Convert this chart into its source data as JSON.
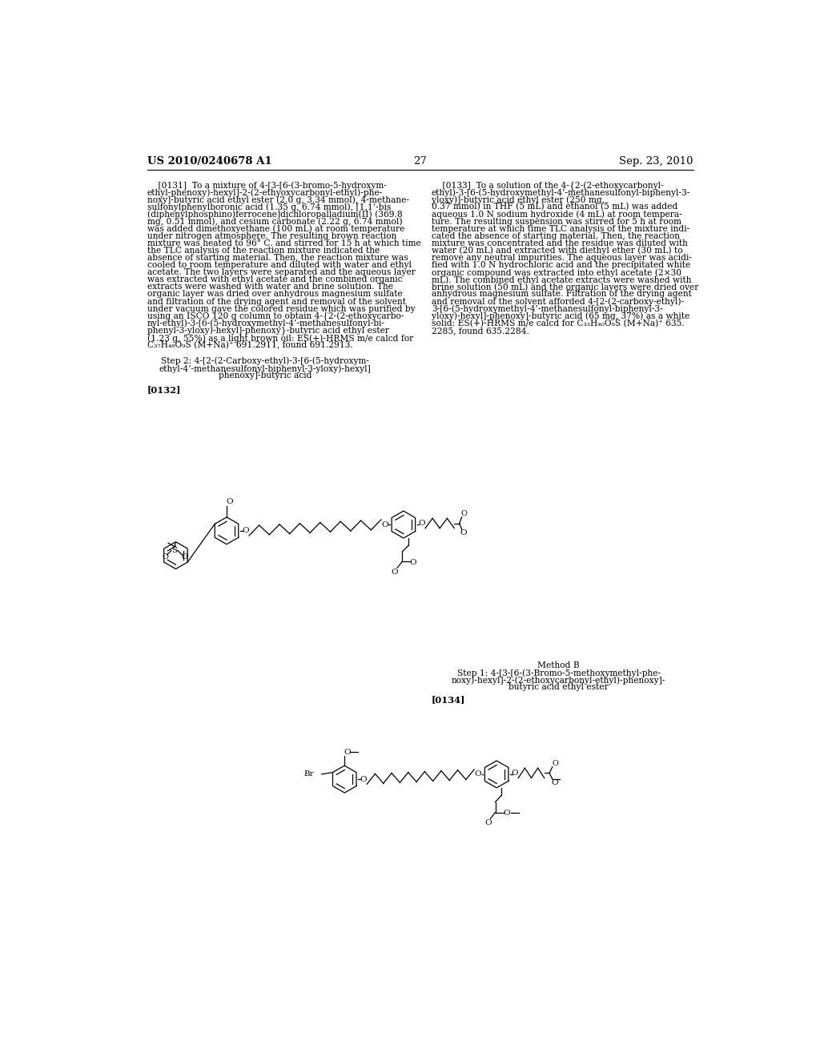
{
  "page_header_left": "US 2010/0240678 A1",
  "page_header_right": "Sep. 23, 2010",
  "page_number": "27",
  "bg": "#ffffff"
}
